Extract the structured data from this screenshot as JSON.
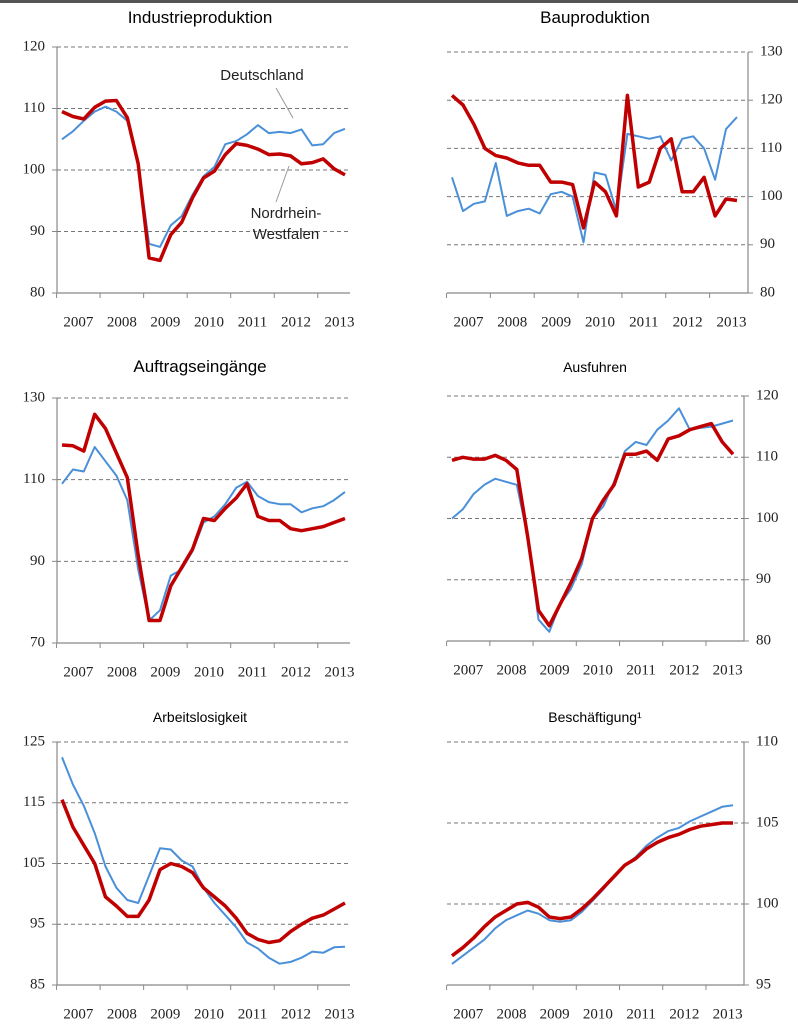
{
  "chart_data": [
    {
      "type": "line",
      "title": "Industrieproduktion",
      "categories": [
        "2007",
        null,
        null,
        null,
        "2008",
        null,
        null,
        null,
        "2009",
        null,
        null,
        null,
        "2010",
        null,
        null,
        null,
        "2011",
        null,
        null,
        null,
        "2012",
        null,
        null,
        null,
        "2013",
        null,
        null
      ],
      "ylim": [
        80,
        120
      ],
      "yticks": [
        80,
        90,
        100,
        110,
        120
      ],
      "grid": true,
      "y_axis_side": "left",
      "series": [
        {
          "name": "Deutschland",
          "color": "#4a90d9",
          "values": [
            105,
            106.3,
            108,
            109.5,
            110.3,
            109.5,
            108,
            101,
            88,
            87.5,
            91,
            92.5,
            96,
            99,
            100.5,
            104.2,
            104.7,
            105.8,
            107.3,
            106,
            106.2,
            106,
            106.6,
            104,
            104.2,
            106,
            106.7
          ]
        },
        {
          "name": "Nordrhein-Westfalen",
          "color": "#c00000",
          "values": [
            109.5,
            108.7,
            108.3,
            110.2,
            111.2,
            111.3,
            108.5,
            101,
            85.7,
            85.3,
            89.5,
            91.5,
            95.5,
            98.7,
            99.8,
            102.5,
            104.3,
            104,
            103.4,
            102.5,
            102.6,
            102.3,
            101,
            101.2,
            101.8,
            100.2,
            99.2
          ]
        }
      ]
    },
    {
      "type": "line",
      "title": "Bauproduktion",
      "categories": [
        "2007",
        null,
        null,
        null,
        "2008",
        null,
        null,
        null,
        "2009",
        null,
        null,
        null,
        "2010",
        null,
        null,
        null,
        "2011",
        null,
        null,
        null,
        "2012",
        null,
        null,
        null,
        "2013",
        null,
        null
      ],
      "ylim": [
        80,
        130
      ],
      "yticks": [
        80,
        90,
        100,
        110,
        120,
        130
      ],
      "grid": true,
      "y_axis_side": "right",
      "series": [
        {
          "color": "#4a90d9",
          "values": [
            104,
            97,
            98.5,
            99,
            107,
            96,
            97,
            97.5,
            96.5,
            100.5,
            101,
            100,
            90.5,
            105,
            104.5,
            97,
            113,
            112.5,
            112,
            112.5,
            107.5,
            112,
            112.5,
            110,
            103.5,
            114,
            116.5
          ]
        },
        {
          "color": "#c00000",
          "values": [
            121,
            119,
            115,
            110,
            108.5,
            108,
            107,
            106.5,
            106.5,
            103,
            103,
            102.5,
            93.5,
            103,
            101,
            96,
            121,
            102,
            103,
            110,
            112,
            101,
            101,
            104,
            96,
            99.5,
            99.2
          ]
        }
      ]
    },
    {
      "type": "line",
      "title": "Auftragseingänge",
      "categories": [
        "2007",
        null,
        null,
        null,
        "2008",
        null,
        null,
        null,
        "2009",
        null,
        null,
        null,
        "2010",
        null,
        null,
        null,
        "2011",
        null,
        null,
        null,
        "2012",
        null,
        null,
        null,
        "2013",
        null,
        null
      ],
      "ylim": [
        70,
        130
      ],
      "yticks": [
        70,
        90,
        110,
        130
      ],
      "grid": true,
      "y_axis_side": "left",
      "series": [
        {
          "color": "#4a90d9",
          "values": [
            109,
            112.5,
            112,
            118,
            114.5,
            111,
            105,
            88,
            75.5,
            78,
            86.5,
            88,
            92.5,
            99.5,
            101,
            104,
            108,
            109.5,
            106,
            104.5,
            104,
            104,
            102,
            103,
            103.5,
            105,
            107
          ]
        },
        {
          "color": "#c00000",
          "values": [
            118.5,
            118.3,
            117,
            126,
            122.5,
            116.5,
            110.5,
            91.5,
            75.5,
            75.5,
            84,
            88.5,
            93,
            100.5,
            100,
            103,
            105.5,
            109,
            101,
            100,
            100,
            98,
            97.5,
            98,
            98.5,
            99.5,
            100.5
          ]
        }
      ]
    },
    {
      "type": "line",
      "title": "Ausfuhren",
      "categories": [
        "2007",
        null,
        null,
        null,
        "2008",
        null,
        null,
        null,
        "2009",
        null,
        null,
        null,
        "2010",
        null,
        null,
        null,
        "2011",
        null,
        null,
        null,
        "2012",
        null,
        null,
        null,
        "2013",
        null,
        null
      ],
      "ylim": [
        80,
        120
      ],
      "yticks": [
        80,
        90,
        100,
        110,
        120
      ],
      "grid": true,
      "y_axis_side": "right",
      "series": [
        {
          "color": "#4a90d9",
          "values": [
            100,
            101.5,
            104,
            105.5,
            106.5,
            106,
            105.5,
            97,
            83.5,
            81.5,
            86,
            88.5,
            92.5,
            100,
            102,
            106,
            111,
            112.5,
            112,
            114.5,
            116,
            118,
            114.5,
            114.8,
            115,
            115.5,
            116
          ]
        },
        {
          "color": "#c00000",
          "values": [
            109.5,
            110,
            109.7,
            109.7,
            110.3,
            109.5,
            108,
            97,
            85,
            82.5,
            86,
            89.5,
            93.5,
            100,
            103,
            105.5,
            110.5,
            110.5,
            111,
            109.5,
            113,
            113.5,
            114.5,
            115,
            115.5,
            112.5,
            110.5
          ]
        }
      ]
    },
    {
      "type": "line",
      "title": "Arbeitslosigkeit",
      "categories": [
        "2007",
        null,
        null,
        null,
        "2008",
        null,
        null,
        null,
        "2009",
        null,
        null,
        null,
        "2010",
        null,
        null,
        null,
        "2011",
        null,
        null,
        null,
        "2012",
        null,
        null,
        null,
        "2013",
        null,
        null
      ],
      "ylim": [
        85,
        125
      ],
      "yticks": [
        85,
        95,
        105,
        115,
        125
      ],
      "grid": true,
      "y_axis_side": "left",
      "series": [
        {
          "color": "#4a90d9",
          "values": [
            122.5,
            118,
            114.5,
            110,
            104.5,
            101,
            99,
            98.5,
            103,
            107.5,
            107.3,
            105.5,
            104.5,
            101,
            98.5,
            96.5,
            94.5,
            92,
            91,
            89.5,
            88.5,
            88.8,
            89.5,
            90.5,
            90.3,
            91.2,
            91.3
          ]
        },
        {
          "color": "#c00000",
          "values": [
            115.5,
            111,
            108,
            105,
            99.5,
            98,
            96.3,
            96.3,
            99,
            104,
            105,
            104.5,
            103.5,
            101,
            99.5,
            98,
            96,
            93.5,
            92.5,
            92,
            92.3,
            93.8,
            95,
            96,
            96.5,
            97.5,
            98.5
          ]
        }
      ]
    },
    {
      "type": "line",
      "title": "Beschäftigung¹",
      "categories": [
        "2007",
        null,
        null,
        null,
        "2008",
        null,
        null,
        null,
        "2009",
        null,
        null,
        null,
        "2010",
        null,
        null,
        null,
        "2011",
        null,
        null,
        null,
        "2012",
        null,
        null,
        null,
        "2013",
        null,
        null
      ],
      "ylim": [
        95,
        110
      ],
      "yticks": [
        95,
        100,
        105,
        110
      ],
      "grid": true,
      "y_axis_side": "right",
      "series": [
        {
          "color": "#4a90d9",
          "values": [
            96.3,
            96.8,
            97.3,
            97.8,
            98.5,
            99.0,
            99.3,
            99.6,
            99.4,
            99.0,
            98.9,
            99.0,
            99.5,
            100.2,
            100.9,
            101.7,
            102.4,
            102.9,
            103.6,
            104.1,
            104.5,
            104.7,
            105.1,
            105.4,
            105.7,
            106.0,
            106.1
          ]
        },
        {
          "color": "#c00000",
          "values": [
            96.8,
            97.3,
            97.9,
            98.6,
            99.2,
            99.6,
            100,
            100.1,
            99.8,
            99.2,
            99.1,
            99.2,
            99.7,
            100.3,
            101,
            101.7,
            102.4,
            102.8,
            103.4,
            103.8,
            104.1,
            104.3,
            104.6,
            104.8,
            104.9,
            105.0,
            105.0
          ]
        }
      ]
    }
  ]
}
